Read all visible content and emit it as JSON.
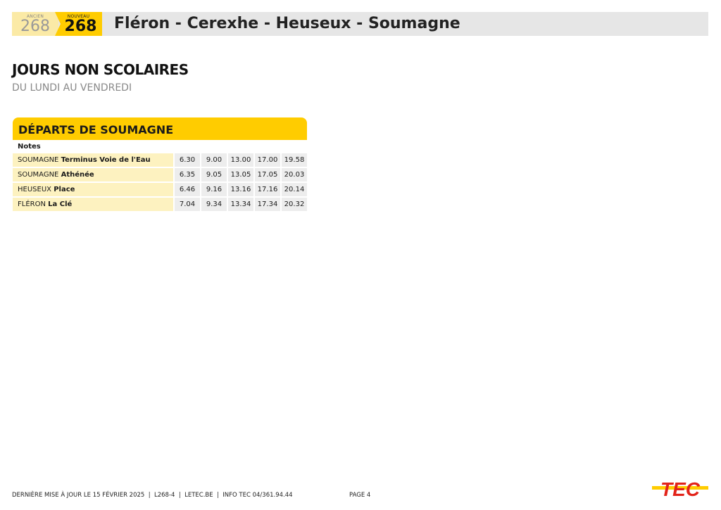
{
  "header": {
    "ancien_label": "ANCIEN",
    "ancien_number": "268",
    "nouveau_label": "NOUVEAU",
    "nouveau_number": "268",
    "title": "Fléron - Cerexhe - Heuseux - Soumagne"
  },
  "section": {
    "title": "JOURS NON SCOLAIRES",
    "subtitle": "DU LUNDI AU VENDREDI"
  },
  "timetable": {
    "title": "DÉPARTS DE SOUMAGNE",
    "notes_label": "Notes",
    "rows": [
      {
        "town": "SOUMAGNE",
        "stop": "Terminus Voie de l'Eau",
        "times": [
          "6.30",
          "9.00",
          "13.00",
          "17.00",
          "19.58"
        ]
      },
      {
        "town": "SOUMAGNE",
        "stop": "Athénée",
        "times": [
          "6.35",
          "9.05",
          "13.05",
          "17.05",
          "20.03"
        ]
      },
      {
        "town": "HEUSEUX",
        "stop": "Place",
        "times": [
          "6.46",
          "9.16",
          "13.16",
          "17.16",
          "20.14"
        ]
      },
      {
        "town": "FLÉRON",
        "stop": "La Clé",
        "times": [
          "7.04",
          "9.34",
          "13.34",
          "17.34",
          "20.32"
        ]
      }
    ]
  },
  "footer": {
    "text": "DERNIÈRE MISE À JOUR LE 15 FÉVRIER 2025  |  L268-4  |  LETEC.BE  |  INFO TEC 04/361.94.44",
    "page": "PAGE 4",
    "logo": "TEC"
  },
  "colors": {
    "yellow": "#ffcc00",
    "light_yellow": "#fdf2c0",
    "logo_red": "#e2231a"
  }
}
